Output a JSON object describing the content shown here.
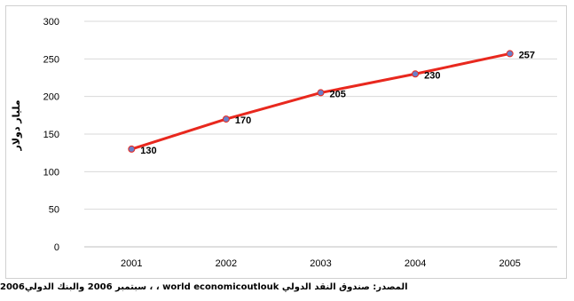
{
  "chart_data": {
    "type": "line",
    "x": [
      "2001",
      "2002",
      "2003",
      "2004",
      "2005"
    ],
    "series": [
      {
        "values": [
          130,
          170,
          205,
          230,
          257
        ]
      }
    ],
    "data_labels": [
      "130",
      "170",
      "205",
      "230",
      "257"
    ],
    "ylabel": "مليار دولار",
    "yticks": [
      "0",
      "50",
      "100",
      "150",
      "200",
      "250",
      "300"
    ],
    "ylim": [
      0,
      300
    ],
    "grid": true,
    "legend": "none",
    "colors": {
      "line": "#e8281e",
      "marker": "#6a7fc8",
      "grid": "#d9d9d9"
    }
  },
  "source_note": "سبتمبر 2006 والبنك الدولي2006 ، ، world economicoutlouk المصدر: صندوق النقد الدولي"
}
